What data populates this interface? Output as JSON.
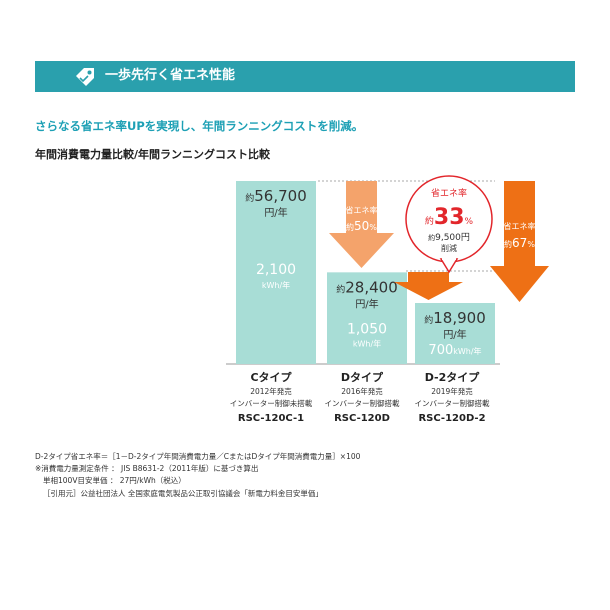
{
  "header": {
    "title": "一歩先行く省エネ性能"
  },
  "lead": "さらなる省エネ率UPを実現し、年間ランニングコストを削減。",
  "subhead": "年間消費電力量比較/年間ランニングコスト比較",
  "chart_data": {
    "type": "bar",
    "categories": [
      "Cタイプ",
      "Dタイプ",
      "D-2タイプ"
    ],
    "series": [
      {
        "values_yen": [
          56700,
          28400,
          18900
        ],
        "values_kwh": [
          2100,
          1050,
          700
        ]
      }
    ],
    "bars": [
      {
        "approx": "約",
        "cost": "56,700",
        "unit": "円/年",
        "kwh": "2,100",
        "kwh_unit": "kWh/年",
        "color": "#a8ddd6"
      },
      {
        "approx": "約",
        "cost": "28,400",
        "unit": "円/年",
        "kwh": "1,050",
        "kwh_unit": "kWh/年",
        "color": "#a8ddd6"
      },
      {
        "approx": "約",
        "cost": "18,900",
        "unit": "円/年",
        "kwh": "700",
        "kwh_unit": "kWh/年",
        "color": "#a8ddd6"
      }
    ],
    "labels": [
      {
        "type": "Cタイプ",
        "year": "2012年発売",
        "desc": "インバーター制御未搭載",
        "model": "RSC-120C-1"
      },
      {
        "type": "Dタイプ",
        "year": "2016年発売",
        "desc": "インバーター制御搭載",
        "model": "RSC-120D"
      },
      {
        "type": "D-2タイプ",
        "year": "2019年発売",
        "desc": "インバーター制御搭載",
        "model": "RSC-120D-2"
      }
    ],
    "arrows": [
      {
        "label1": "省エネ率",
        "prefix": "約",
        "value": "50",
        "pct": "%",
        "color": "#f4a36b"
      },
      {
        "label1": "省エネ率",
        "prefix": "約",
        "value": "67",
        "pct": "%",
        "color": "#ee7015"
      }
    ],
    "bubble": {
      "label1": "省エネ率",
      "prefix": "約",
      "value": "33",
      "pct": "%",
      "line2_prefix": "約",
      "line2": "9,500円",
      "line3": "削減",
      "color": "#e2262b"
    },
    "ylim": [
      0,
      60000
    ]
  },
  "notes": [
    "D-2タイプ省エネ率＝［1－D-2タイプ年間消費電力量／CまたはDタイプ年間消費電力量］×100",
    "※消費電力量測定条件 ： JIS B8631-2（2011年版）に基づき算出",
    "単相100V目安単価 ： 27円/kWh（税込）",
    "［引用元］公益社団法人 全国家庭電気製品公正取引協議会「新電力料金目安単価」"
  ],
  "colors": {
    "accent": "#2aa0ad",
    "lead": "#1da0b5",
    "bar": "#a8ddd6",
    "orange_light": "#f4a36b",
    "orange": "#ee7015",
    "red": "#e2262b"
  },
  "icons": {
    "tag": "tag-icon"
  }
}
